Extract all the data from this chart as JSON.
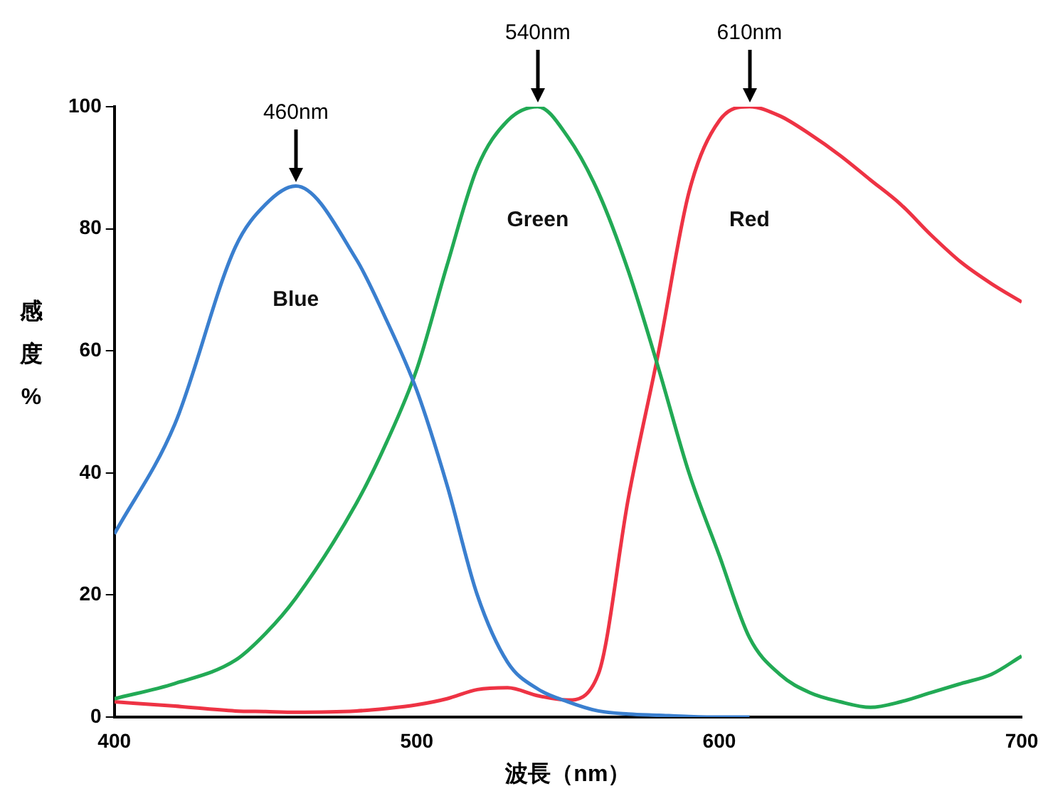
{
  "chart_data": {
    "type": "line",
    "xlabel": "波長（nm）",
    "ylabel": "感度%",
    "xlim": [
      400,
      700
    ],
    "xticks": [
      400,
      500,
      600,
      700
    ],
    "ylim": [
      0,
      100
    ],
    "yticks": [
      0,
      20,
      40,
      60,
      80,
      100
    ],
    "grid": false,
    "legend": false,
    "marker": "none",
    "line_style": "solid",
    "x": [
      400,
      420,
      440,
      450,
      460,
      480,
      490,
      500,
      510,
      520,
      530,
      540,
      550,
      560,
      570,
      580,
      590,
      600,
      610,
      620,
      630,
      640,
      650,
      660,
      670,
      680,
      690,
      700
    ],
    "series": [
      {
        "name": "Blue",
        "color": "#3a7fcf",
        "values": [
          30,
          48,
          77,
          84,
          87,
          75,
          65,
          53.5,
          38,
          20,
          9,
          4.6,
          2.5,
          1,
          0.5,
          0.3,
          0.1,
          0,
          0,
          null,
          null,
          null,
          null,
          null,
          null,
          null,
          null,
          null
        ]
      },
      {
        "name": "Green",
        "color": "#22aa55",
        "values": [
          3,
          5.5,
          9.3,
          13.7,
          19.5,
          35,
          45,
          57,
          74,
          90,
          97.7,
          100,
          95,
          86,
          73,
          57,
          40,
          26.5,
          13,
          7,
          4,
          2.5,
          1.6,
          2.5,
          4,
          5.5,
          7,
          10
        ]
      },
      {
        "name": "Red",
        "color": "#ee3344",
        "values": [
          2.5,
          1.8,
          1,
          0.9,
          0.8,
          1,
          1.4,
          2,
          3,
          4.5,
          4.8,
          3.5,
          2.8,
          7,
          36,
          60,
          86,
          97.7,
          100,
          98.5,
          95.5,
          92,
          88,
          84,
          79,
          74.5,
          71,
          68
        ]
      }
    ],
    "annotations": [
      {
        "text": "460nm",
        "x": 460,
        "y": 87
      },
      {
        "text": "540nm",
        "x": 540,
        "y": 100
      },
      {
        "text": "610nm",
        "x": 610,
        "y": 100
      }
    ]
  }
}
